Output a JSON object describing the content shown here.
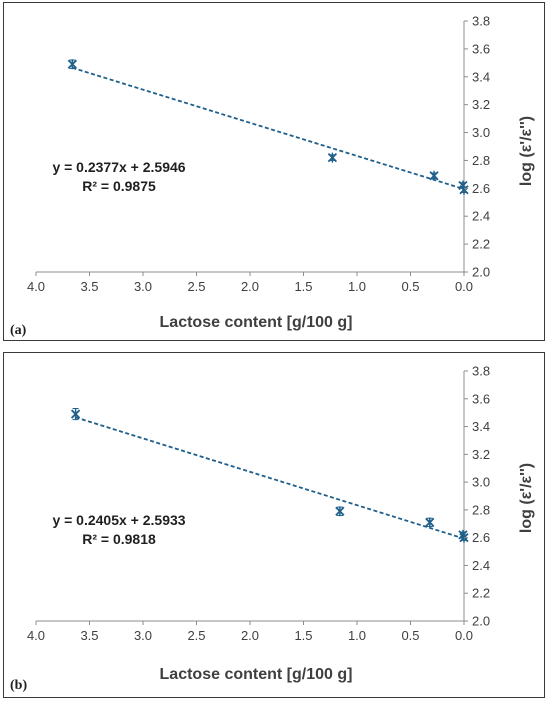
{
  "colors": {
    "marker": "#1f5f8b",
    "trendline": "#1f5f8b",
    "axis": "#8c8c8c",
    "text": "#3f3f3f"
  },
  "chart_data": [
    {
      "type": "scatter",
      "panel_label": "(a)",
      "xlabel": "Lactose content [g/100 g]",
      "ylabel": "log (ε'/ε'')",
      "xlim": [
        0.0,
        4.0
      ],
      "x_reversed": true,
      "ylim": [
        2.0,
        3.8
      ],
      "x_ticks": [
        "4.0",
        "3.5",
        "3.0",
        "2.5",
        "2.0",
        "1.5",
        "1.0",
        "0.5",
        "0.0"
      ],
      "y_ticks": [
        "3.8",
        "3.6",
        "3.4",
        "3.2",
        "3.0",
        "2.8",
        "2.6",
        "2.4",
        "2.2",
        "2.0"
      ],
      "series": [
        {
          "points": [
            {
              "x": 3.66,
              "y": 3.49,
              "err": 0.03
            },
            {
              "x": 1.23,
              "y": 2.82,
              "err": 0.02
            },
            {
              "x": 0.28,
              "y": 2.69,
              "err": 0.02
            },
            {
              "x": 0.01,
              "y": 2.62,
              "err": 0.02
            },
            {
              "x": 0.0,
              "y": 2.59,
              "err": 0.02
            }
          ]
        }
      ],
      "trendline": {
        "slope": 0.2377,
        "intercept": 2.5946,
        "equation": "y = 0.2377x + 2.5946",
        "r2": "R² = 0.9875"
      }
    },
    {
      "type": "scatter",
      "panel_label": "(b)",
      "xlabel": "Lactose content [g/100 g]",
      "ylabel": "log (ε'/ε'')",
      "xlim": [
        0.0,
        4.0
      ],
      "x_reversed": true,
      "ylim": [
        2.0,
        3.8
      ],
      "x_ticks": [
        "4.0",
        "3.5",
        "3.0",
        "2.5",
        "2.0",
        "1.5",
        "1.0",
        "0.5",
        "0.0"
      ],
      "y_ticks": [
        "3.8",
        "3.6",
        "3.4",
        "3.2",
        "3.0",
        "2.8",
        "2.6",
        "2.4",
        "2.2",
        "2.0"
      ],
      "series": [
        {
          "points": [
            {
              "x": 3.63,
              "y": 3.49,
              "err": 0.04
            },
            {
              "x": 1.16,
              "y": 2.79,
              "err": 0.03
            },
            {
              "x": 0.32,
              "y": 2.71,
              "err": 0.03
            },
            {
              "x": 0.01,
              "y": 2.62,
              "err": 0.02
            },
            {
              "x": 0.0,
              "y": 2.6,
              "err": 0.02
            }
          ]
        }
      ],
      "trendline": {
        "slope": 0.2405,
        "intercept": 2.5933,
        "equation": "y = 0.2405x + 2.5933",
        "r2": "R² = 0.9818"
      }
    }
  ]
}
